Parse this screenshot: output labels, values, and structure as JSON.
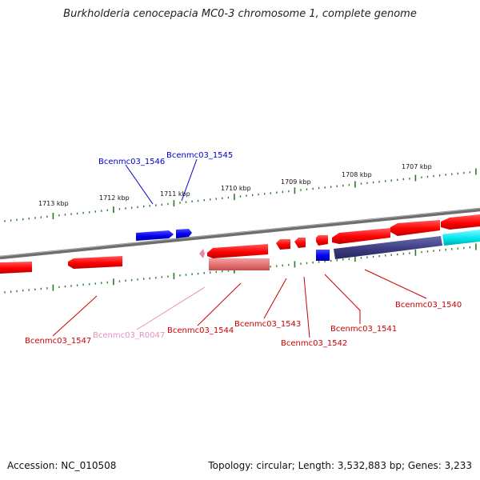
{
  "title": "Burkholderia cenocepacia MC0-3 chromosome 1, complete genome",
  "accession": "Accession: NC_010508",
  "summary": "Topology: circular; Length: 3,532,883 bp; Genes: 3,233",
  "scale_labels": [
    "1713 kbp",
    "1712 kbp",
    "1711 kbp",
    "1710 kbp",
    "1709 kbp",
    "1708 kbp",
    "1707 kbp"
  ],
  "colors": {
    "backbone": "#7a7a7a",
    "red_gene": "#ff0000",
    "blue_gene": "#0000ee",
    "pink_gene": "#e87ca8",
    "navy_gene": "#3c3c82",
    "cyan_gene": "#00e5ee",
    "tick": "#2a7a2a"
  },
  "genes": [
    {
      "label": "Bcenmc03_1546",
      "color": "#0000cc"
    },
    {
      "label": "Bcenmc03_1545",
      "color": "#0000cc"
    },
    {
      "label": "Bcenmc03_1547",
      "color": "#cc0000"
    },
    {
      "label": "Bcenmc03_R0047",
      "color": "#e58fc0"
    },
    {
      "label": "Bcenmc03_1544",
      "color": "#cc0000"
    },
    {
      "label": "Bcenmc03_1543",
      "color": "#cc0000"
    },
    {
      "label": "Bcenmc03_1542",
      "color": "#cc0000"
    },
    {
      "label": "Bcenmc03_1541",
      "color": "#cc0000"
    },
    {
      "label": "Bcenmc03_1540",
      "color": "#cc0000"
    }
  ]
}
